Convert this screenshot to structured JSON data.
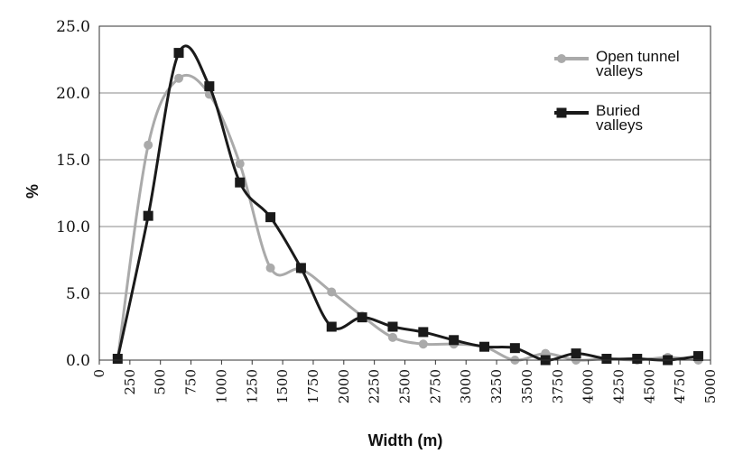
{
  "chart_data": {
    "type": "line",
    "xlabel": "Width (m)",
    "ylabel": "%",
    "xlim": [
      0,
      5000
    ],
    "ylim": [
      0,
      25
    ],
    "x_ticks": [
      "0",
      "250",
      "500",
      "750",
      "1000",
      "1250",
      "1500",
      "1750",
      "2000",
      "2250",
      "2500",
      "2750",
      "3000",
      "3250",
      "3500",
      "3750",
      "4000",
      "4250",
      "4500",
      "4750",
      "5000"
    ],
    "y_ticks": [
      "0.0",
      "5.0",
      "10.0",
      "15.0",
      "20.0",
      "25.0"
    ],
    "grid": "horizontal",
    "legend_position": "top-right",
    "series": [
      {
        "name": "Open tunnel valleys",
        "color": "#aaaaaa",
        "marker": "circle",
        "x": [
          150,
          400,
          650,
          900,
          1150,
          1400,
          1650,
          1900,
          2150,
          2400,
          2650,
          2900,
          3150,
          3400,
          3650,
          3900,
          4150,
          4400,
          4650,
          4900
        ],
        "y": [
          0.1,
          16.1,
          21.1,
          19.9,
          14.7,
          6.9,
          6.8,
          5.1,
          3.3,
          1.7,
          1.2,
          1.2,
          1.0,
          0.0,
          0.5,
          0.0,
          0.1,
          0.0,
          0.2,
          0.0
        ]
      },
      {
        "name": "Buried valleys",
        "color": "#1a1a1a",
        "marker": "square",
        "x": [
          150,
          400,
          650,
          900,
          1150,
          1400,
          1650,
          1900,
          2150,
          2400,
          2650,
          2900,
          3150,
          3400,
          3650,
          3900,
          4150,
          4400,
          4650,
          4900
        ],
        "y": [
          0.1,
          10.8,
          23.0,
          20.5,
          13.3,
          10.7,
          6.9,
          2.5,
          3.2,
          2.5,
          2.1,
          1.5,
          1.0,
          0.9,
          0.0,
          0.5,
          0.1,
          0.1,
          0.0,
          0.3
        ]
      }
    ]
  }
}
